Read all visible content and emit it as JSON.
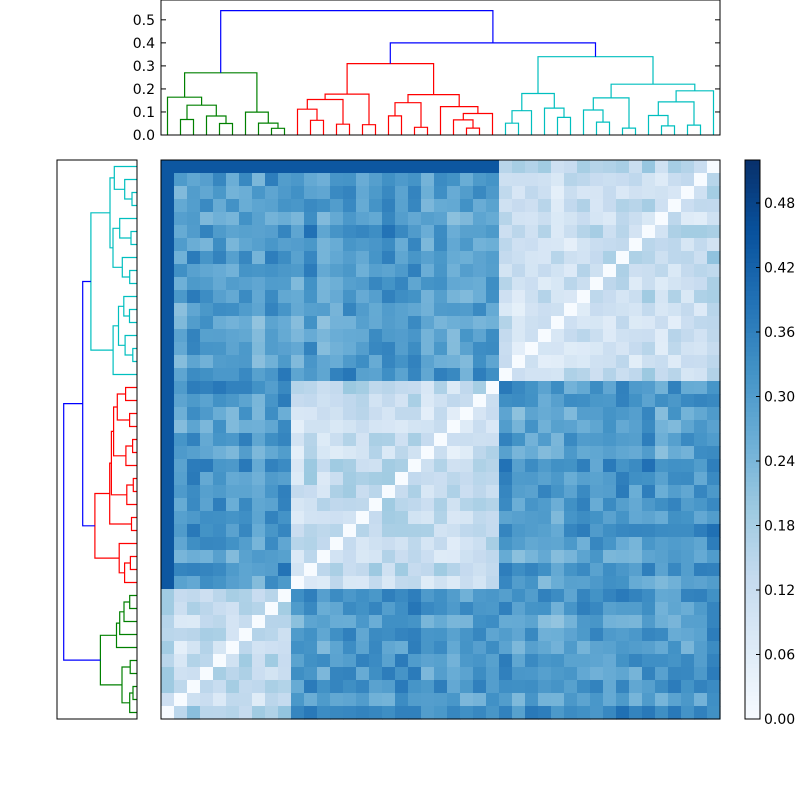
{
  "chart_data": {
    "type": "heatmap",
    "title": "",
    "n_leaves": 43,
    "top_dendrogram": {
      "ylim": [
        0.0,
        0.55
      ],
      "yticks": [
        "0.0",
        "0.1",
        "0.2",
        "0.3",
        "0.4",
        "0.5"
      ],
      "clusters": [
        {
          "color": "green",
          "leaves": 10,
          "merge_height": 0.27
        },
        {
          "color": "red",
          "leaves": 16,
          "merge_height": 0.31
        },
        {
          "color": "cyan",
          "leaves": 17,
          "merge_height": 0.34
        }
      ],
      "root_merges": [
        {
          "between": "red+cyan",
          "height": 0.4
        },
        {
          "between": "green+(red,cyan)",
          "height": 0.54
        }
      ]
    },
    "left_dendrogram": {
      "orientation": "left",
      "clusters_top_to_bottom": [
        {
          "color": "cyan",
          "leaves": 17
        },
        {
          "color": "red",
          "leaves": 16
        },
        {
          "color": "green",
          "leaves": 10
        }
      ]
    },
    "colorbar": {
      "cmap": "Blues",
      "range": [
        0.0,
        0.52
      ],
      "ticks": [
        "0.00",
        "0.06",
        "0.12",
        "0.18",
        "0.24",
        "0.30",
        "0.36",
        "0.42",
        "0.48"
      ]
    },
    "matrix_summary": {
      "diagonal": 0.0,
      "within_cluster_typical": 0.12,
      "between_cluster_typical": 0.3,
      "outlier_rows_max": 0.52
    }
  },
  "colors": {
    "green": "#008000",
    "red": "#ff0000",
    "cyan": "#00bfbf",
    "blue": "#0000ff",
    "frame": "#000000"
  }
}
